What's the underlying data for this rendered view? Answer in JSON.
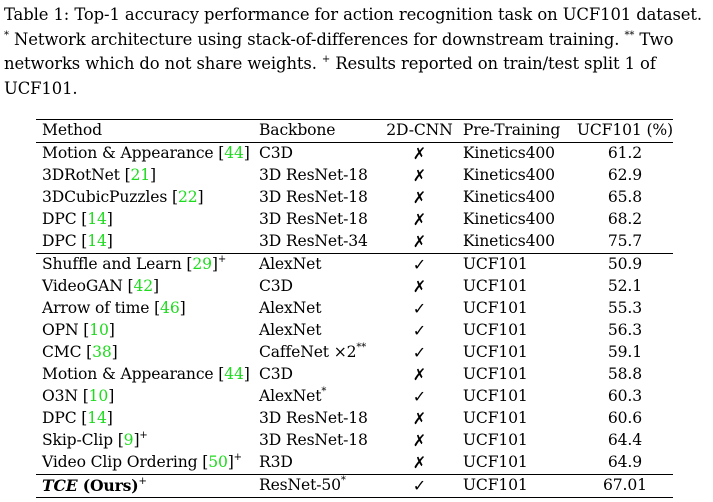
{
  "caption": {
    "text_1": "Table 1: Top-1 accuracy performance for action recognition task on UCF101 dataset. ",
    "sym_1": "*",
    "text_2": " Network architecture using stack-of-differences for downstream training. ",
    "sym_2": "**",
    "text_3": " Two networks which do not share weights. ",
    "sym_3": "+",
    "text_4": " Results reported on train/test split 1 of UCF101."
  },
  "table": {
    "headers": [
      "Method",
      "Backbone",
      "2D-CNN",
      "Pre-Training",
      "UCF101 (%)"
    ],
    "rows": [
      {
        "method": "Motion & Appearance [",
        "ref": "44",
        "close": "]",
        "sup": "",
        "backbone": "C3D",
        "backbone_sup": "",
        "cnn": "✗",
        "pretrain": "Kinetics400",
        "acc": "61.2"
      },
      {
        "method": "3DRotNet [",
        "ref": "21",
        "close": "]",
        "sup": "",
        "backbone": "3D ResNet-18",
        "backbone_sup": "",
        "cnn": "✗",
        "pretrain": "Kinetics400",
        "acc": "62.9"
      },
      {
        "method": "3DCubicPuzzles [",
        "ref": "22",
        "close": "]",
        "sup": "",
        "backbone": "3D ResNet-18",
        "backbone_sup": "",
        "cnn": "✗",
        "pretrain": "Kinetics400",
        "acc": "65.8"
      },
      {
        "method": "DPC [",
        "ref": "14",
        "close": "]",
        "sup": "",
        "backbone": "3D ResNet-18",
        "backbone_sup": "",
        "cnn": "✗",
        "pretrain": "Kinetics400",
        "acc": "68.2"
      },
      {
        "method": "DPC [",
        "ref": "14",
        "close": "]",
        "sup": "",
        "backbone": "3D ResNet-34",
        "backbone_sup": "",
        "cnn": "✗",
        "pretrain": "Kinetics400",
        "acc": "75.7"
      },
      {
        "method": "Shuffle and Learn [",
        "ref": "29",
        "close": "]",
        "sup": "+",
        "backbone": "AlexNet",
        "backbone_sup": "",
        "cnn": "✓",
        "pretrain": "UCF101",
        "acc": "50.9"
      },
      {
        "method": "VideoGAN [",
        "ref": "42",
        "close": "]",
        "sup": "",
        "backbone": "C3D",
        "backbone_sup": "",
        "cnn": "✗",
        "pretrain": "UCF101",
        "acc": "52.1"
      },
      {
        "method": "Arrow of time [",
        "ref": "46",
        "close": "]",
        "sup": "",
        "backbone": "AlexNet",
        "backbone_sup": "",
        "cnn": "✓",
        "pretrain": "UCF101",
        "acc": "55.3"
      },
      {
        "method": "OPN [",
        "ref": "10",
        "close": "]",
        "sup": "",
        "backbone": "AlexNet",
        "backbone_sup": "",
        "cnn": "✓",
        "pretrain": "UCF101",
        "acc": "56.3"
      },
      {
        "method": "CMC [",
        "ref": "38",
        "close": "]",
        "sup": "",
        "backbone": "CaffeNet ×2",
        "backbone_sup": "**",
        "cnn": "✓",
        "pretrain": "UCF101",
        "acc": "59.1"
      },
      {
        "method": "Motion & Appearance [",
        "ref": "44",
        "close": "]",
        "sup": "",
        "backbone": "C3D",
        "backbone_sup": "",
        "cnn": "✗",
        "pretrain": "UCF101",
        "acc": "58.8"
      },
      {
        "method": "O3N [",
        "ref": "10",
        "close": "]",
        "sup": "",
        "backbone": "AlexNet",
        "backbone_sup": "*",
        "cnn": "✓",
        "pretrain": "UCF101",
        "acc": "60.3"
      },
      {
        "method": "DPC [",
        "ref": "14",
        "close": "]",
        "sup": "",
        "backbone": "3D ResNet-18",
        "backbone_sup": "",
        "cnn": "✗",
        "pretrain": "UCF101",
        "acc": "60.6"
      },
      {
        "method": "Skip-Clip [",
        "ref": "9",
        "close": "]",
        "sup": "+",
        "backbone": "3D ResNet-18",
        "backbone_sup": "",
        "cnn": "✗",
        "pretrain": "UCF101",
        "acc": "64.4"
      },
      {
        "method": "Video Clip Ordering [",
        "ref": "50",
        "close": "]",
        "sup": "+",
        "backbone": "R3D",
        "backbone_sup": "",
        "cnn": "✗",
        "pretrain": "UCF101",
        "acc": "64.9"
      }
    ],
    "ours": {
      "name": "TCE",
      "suffix": " (Ours)",
      "sup": "+",
      "backbone": "ResNet-50",
      "backbone_sup": "*",
      "cnn": "✓",
      "pretrain": "UCF101",
      "acc": "67.01"
    }
  }
}
